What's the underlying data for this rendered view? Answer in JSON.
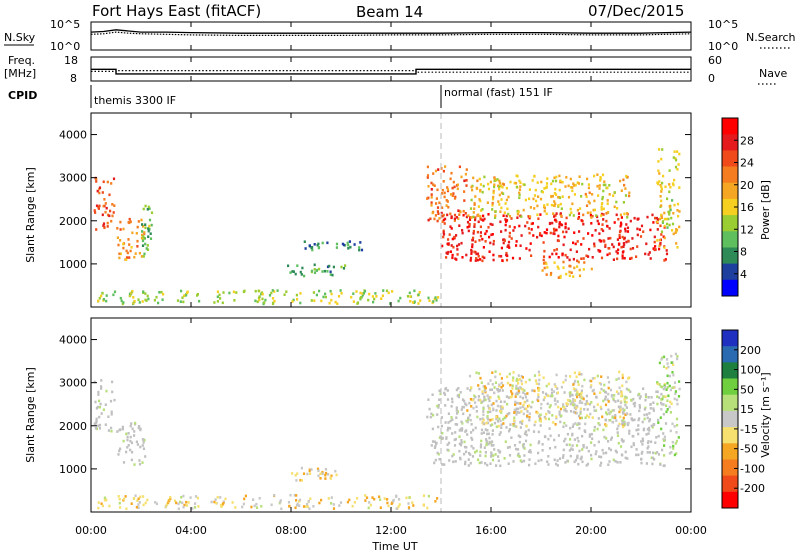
{
  "header": {
    "station": "Fort Hays East (fitACF)",
    "beam": "Beam 14",
    "date": "07/Dec/2015"
  },
  "left_labels": {
    "nsky": "N.Sky",
    "freq": "Freq.",
    "freq_unit": "[MHz]",
    "cpid": "CPID"
  },
  "right_labels": {
    "nsearch": "N.Search",
    "nave": "Nave"
  },
  "noise_panel": {
    "left_ticks": [
      "10^5",
      "10^0"
    ],
    "right_ticks": [
      "10^5",
      "10^0"
    ]
  },
  "freq_panel": {
    "left_ticks": [
      "18",
      "8"
    ],
    "right_ticks": [
      "60",
      "0"
    ]
  },
  "cpid_panel": {
    "mode1": "themis 3300 IF",
    "mode2": "normal (fast) 151 IF"
  },
  "colors": {
    "power_scale": [
      "#0000ff",
      "#1f3f9f",
      "#2e8b57",
      "#5fbf5f",
      "#9acd32",
      "#f5d020",
      "#f5a623",
      "#f57c1f",
      "#f04a1a",
      "#e41a1c",
      "#ff0000"
    ],
    "velocity_scale": [
      "#1f2fbf",
      "#2a6ab0",
      "#1e7f3e",
      "#6fcf3f",
      "#b8e07a",
      "#c8c8c8",
      "#f5e070",
      "#f5a623",
      "#f57c1f",
      "#f04a1a",
      "#ff0000"
    ],
    "ground_scatter": "#c0c0c0"
  },
  "chart_data": [
    {
      "type": "line",
      "title": "Fort Hays East (fitACF)",
      "panel": "noise",
      "ylabel_left": "N.Sky",
      "ylabel_right": "N.Search",
      "x_ticks": [
        "00:00",
        "04:00",
        "08:00",
        "12:00",
        "16:00",
        "20:00",
        "00:00"
      ],
      "x_hours": [
        0,
        0.5,
        1,
        1.5,
        2,
        3,
        4,
        6,
        8,
        10,
        12,
        14,
        16,
        18,
        20,
        22,
        23,
        24
      ],
      "series": [
        {
          "name": "N.Sky",
          "values": [
            3.2,
            3.3,
            3.6,
            3.4,
            3.2,
            3.2,
            3.1,
            3.0,
            3.0,
            3.0,
            3.0,
            3.0,
            3.1,
            3.1,
            3.0,
            3.0,
            3.1,
            3.2
          ]
        },
        {
          "name": "N.Search",
          "values": [
            2.8,
            2.9,
            3.2,
            3.0,
            2.9,
            2.8,
            2.7,
            2.6,
            2.6,
            2.6,
            2.7,
            2.7,
            2.8,
            2.8,
            2.7,
            2.7,
            2.8,
            2.9
          ]
        }
      ]
    },
    {
      "type": "line",
      "panel": "frequency",
      "ylabel_left": "Freq. [MHz]",
      "ylabel_right": "Nave",
      "segments": [
        {
          "start_h": 0,
          "end_h": 1.0,
          "freq_mhz": 13.7,
          "nave": 24
        },
        {
          "start_h": 1.0,
          "end_h": 13.0,
          "freq_mhz": 11.8,
          "nave": 26
        },
        {
          "start_h": 13.0,
          "end_h": 24.0,
          "freq_mhz": 13.7,
          "nave": 22
        }
      ]
    },
    {
      "type": "table",
      "panel": "cpid",
      "ylabel": "CPID",
      "modes": [
        {
          "label": "themis 3300 IF",
          "start_h": 0,
          "end_h": 14.0
        },
        {
          "label": "normal (fast) 151 IF",
          "start_h": 14.0,
          "end_h": 24.0
        }
      ]
    },
    {
      "type": "heatmap",
      "panel": "power",
      "ylabel": "Slant Range [km]",
      "colorbar_label": "Power [dB]",
      "colorbar_ticks": [
        "28",
        "24",
        "20",
        "16",
        "12",
        "8",
        "4"
      ],
      "y_ticks": [
        "4000",
        "3000",
        "2000",
        "1000"
      ],
      "ylim": [
        0,
        4500
      ],
      "xlim": [
        0,
        24
      ],
      "patches": [
        {
          "t0": 0.1,
          "t1": 0.9,
          "r0": 1800,
          "r1": 3100,
          "power": 24
        },
        {
          "t0": 1.0,
          "t1": 2.1,
          "r0": 1100,
          "r1": 2100,
          "power": 20
        },
        {
          "t0": 2.0,
          "t1": 2.4,
          "r0": 1200,
          "r1": 2400,
          "power": 10
        },
        {
          "t0": 7.8,
          "t1": 10.2,
          "r0": 750,
          "r1": 1050,
          "power": 8
        },
        {
          "t0": 8.5,
          "t1": 10.8,
          "r0": 1350,
          "r1": 1550,
          "power": 6
        },
        {
          "t0": 0.2,
          "t1": 14.0,
          "r0": 100,
          "r1": 420,
          "power": 12
        },
        {
          "t0": 13.4,
          "t1": 15.0,
          "r0": 2000,
          "r1": 3300,
          "power": 22
        },
        {
          "t0": 14.0,
          "t1": 23.0,
          "r0": 1100,
          "r1": 2200,
          "power": 27
        },
        {
          "t0": 15.0,
          "t1": 21.5,
          "r0": 2100,
          "r1": 3100,
          "power": 16
        },
        {
          "t0": 18.0,
          "t1": 20.0,
          "r0": 700,
          "r1": 1100,
          "power": 18
        },
        {
          "t0": 22.6,
          "t1": 23.5,
          "r0": 1400,
          "r1": 3700,
          "power": 14
        }
      ]
    },
    {
      "type": "heatmap",
      "panel": "velocity",
      "ylabel": "Slant Range [km]",
      "xlabel": "Time UT",
      "colorbar_label": "Velocity [m s⁻¹]",
      "colorbar_ticks": [
        "200",
        "100",
        "50",
        "15",
        "-15",
        "-50",
        "-100",
        "-200"
      ],
      "y_ticks": [
        "4000",
        "3000",
        "2000",
        "1000"
      ],
      "x_ticks": [
        "00:00",
        "04:00",
        "08:00",
        "12:00",
        "16:00",
        "20:00",
        "00:00"
      ],
      "ylim": [
        0,
        4500
      ],
      "xlim": [
        0,
        24
      ],
      "patches": [
        {
          "t0": 0.1,
          "t1": 0.9,
          "r0": 1900,
          "r1": 3100,
          "velocity": 0
        },
        {
          "t0": 1.0,
          "t1": 2.2,
          "r0": 1100,
          "r1": 2100,
          "velocity": 0
        },
        {
          "t0": 8.0,
          "t1": 10.0,
          "r0": 750,
          "r1": 1050,
          "velocity": -40
        },
        {
          "t0": 0.2,
          "t1": 14.0,
          "r0": 100,
          "r1": 420,
          "velocity": -30
        },
        {
          "t0": 13.4,
          "t1": 23.0,
          "r0": 1100,
          "r1": 2900,
          "velocity": 0
        },
        {
          "t0": 15.0,
          "t1": 21.5,
          "r0": 2000,
          "r1": 3300,
          "velocity": -20
        },
        {
          "t0": 22.6,
          "t1": 23.5,
          "r0": 1300,
          "r1": 3700,
          "velocity": 30
        }
      ]
    }
  ]
}
